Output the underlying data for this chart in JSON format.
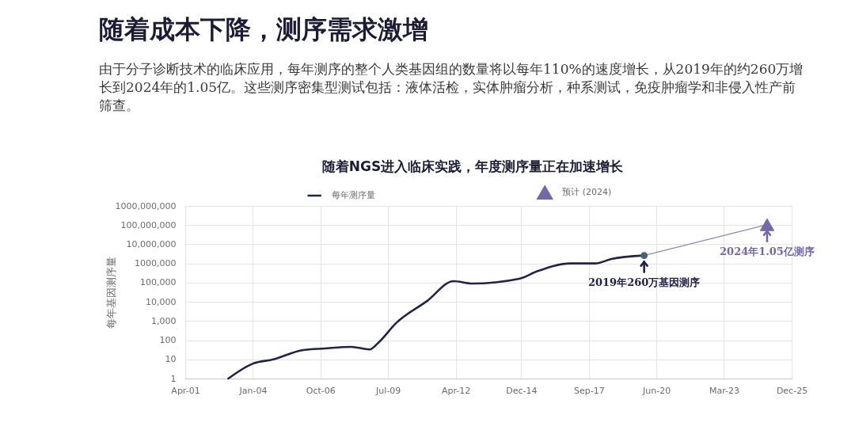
{
  "chart_data": {
    "type": "line",
    "title": "随着成本下降，测序需求激增",
    "subtitle": "由于分子诊断技术的临床应用，每年测序的整个人类基因组的数量将以每年110%的速度增长，从2019年的约260万增长到2024年的1.05亿。这些测序密集型测试包括：液体活检，实体肿瘤分析，种系测试，免疫肿瘤学和非侵入性产前筛查。",
    "ylabel": "每年基因测序量",
    "annotations": [
      "随着NGS进入临床实践，年度测序量正在加速增长",
      {
        "text": "2019年260万基因测序",
        "x": "2019-12",
        "y": 2600000
      },
      {
        "text": "2024年1.05亿测序",
        "x": "2024-12",
        "y": 105000000
      }
    ],
    "series": [
      {
        "name": "每年测序量",
        "color": "#22224a",
        "x": [
          "2003-01",
          "2004-01",
          "2004-11",
          "2006-01",
          "2006-12",
          "2008-01",
          "2008-10",
          "2009-02",
          "2009-11",
          "2011-02",
          "2012-03",
          "2012-12",
          "2014-11",
          "2015-08",
          "2016-12",
          "2017-12",
          "2018-08",
          "2019-12"
        ],
        "values": [
          1,
          6,
          10,
          30,
          37,
          45,
          33,
          70,
          800,
          11000,
          120000,
          90000,
          160000,
          400000,
          1000000,
          1000000,
          1700000,
          2600000
        ]
      },
      {
        "name": "预计 (2024)",
        "type": "scatter",
        "marker": "triangle",
        "color": "#7468a6",
        "x": [
          "2024-12"
        ],
        "values": [
          105000000
        ]
      },
      {
        "color": "#8e8ab5",
        "x": [
          "2019-12",
          "2024-12"
        ],
        "values": [
          2600000,
          105000000
        ]
      },
      {
        "type": "scatter",
        "marker": "circle",
        "color": "#3d6670",
        "x": [
          "2019-12"
        ],
        "values": [
          2600000
        ]
      }
    ],
    "log": true,
    "xlim": [
      "2001-04",
      "2025-12"
    ],
    "xticks": [
      {
        "value": "2001-04",
        "label": "Apr-01"
      },
      {
        "value": "2004-01",
        "label": "Jan-04"
      },
      {
        "value": "2006-10",
        "label": "Oct-06"
      },
      {
        "value": "2009-07",
        "label": "Jul-09"
      },
      {
        "value": "2012-04",
        "label": "Apr-12"
      },
      {
        "value": "2014-12",
        "label": "Dec-14"
      },
      {
        "value": "2017-09",
        "label": "Sep-17"
      },
      {
        "value": "2020-06",
        "label": "Jun-20"
      },
      {
        "value": "2023-03",
        "label": "Mar-23"
      },
      {
        "value": "2025-12",
        "label": "Dec-25"
      }
    ],
    "ylim": [
      1,
      1000000000
    ],
    "yticks": [
      1,
      10,
      100,
      {
        "value": 1000,
        "label": "1,000"
      },
      {
        "value": 10000,
        "label": "10,000"
      },
      {
        "value": 100000,
        "label": "100,000"
      },
      {
        "value": 1000000,
        "label": "1000,000"
      },
      {
        "value": 10000000,
        "label": "10,000,000"
      },
      {
        "value": 100000000,
        "label": "100,000,000"
      },
      {
        "value": 1000000000,
        "label": "1000,000,000"
      }
    ],
    "grid": true,
    "legend": "top"
  }
}
